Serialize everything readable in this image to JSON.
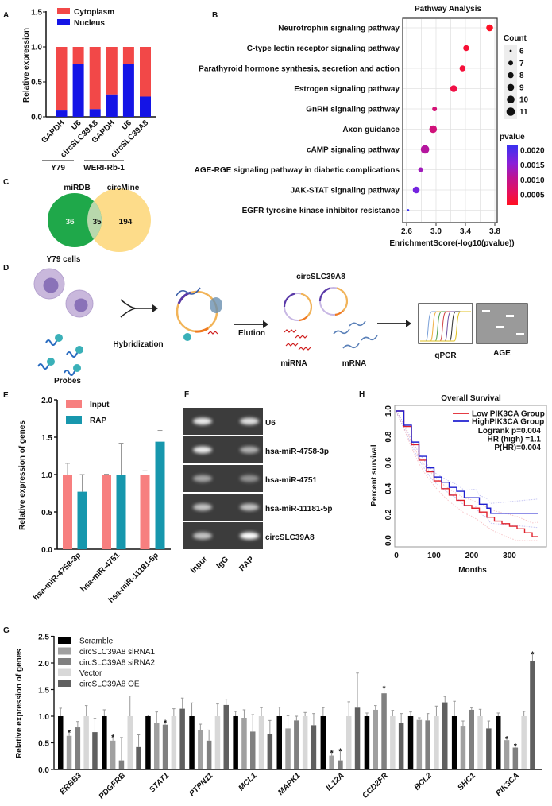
{
  "figure": {
    "panel_labels": [
      "A",
      "B",
      "C",
      "D",
      "E",
      "F",
      "G",
      "H"
    ]
  },
  "chart_data": [
    {
      "panel": "A",
      "type": "bar",
      "stacked": true,
      "categories": [
        "GAPDH",
        "U6",
        "circSLC39A8",
        "GAPDH",
        "U6",
        "circSLC39A8"
      ],
      "groups": [
        {
          "label": "Y79",
          "members": [
            0,
            1,
            2
          ]
        },
        {
          "label": "WERI-Rb-1",
          "members": [
            3,
            4,
            5
          ]
        }
      ],
      "series": [
        {
          "name": "Cytoplasm",
          "values": [
            0.91,
            0.24,
            0.89,
            0.68,
            0.24,
            0.71
          ],
          "color": "#f24848"
        },
        {
          "name": "Nucleus",
          "values": [
            0.09,
            0.76,
            0.11,
            0.32,
            0.76,
            0.29
          ],
          "color": "#1414e6"
        }
      ],
      "ylabel": "Relative expression",
      "ylim": [
        0,
        1.5
      ],
      "yticks": [
        "0.0",
        "0.5",
        "1.0",
        "1.5"
      ],
      "legend": "top"
    },
    {
      "panel": "B",
      "type": "scatter",
      "title": "Pathway Analysis",
      "xlabel": "EnrichmentScore(-log10(pvalue))",
      "xlim": [
        2.57,
        3.82
      ],
      "xticks": [
        "2.6",
        "3.0",
        "3.4",
        "3.8"
      ],
      "grid": true,
      "points": [
        {
          "pathway": "Neurotrophin signaling pathway",
          "score": 3.73,
          "count": 9,
          "pvalue": 0.00019
        },
        {
          "pathway": "C-type lectin receptor signaling pathway",
          "score": 3.41,
          "count": 8,
          "pvalue": 0.00039
        },
        {
          "pathway": "Parathyroid hormone synthesis, secretion and action",
          "score": 3.36,
          "count": 8,
          "pvalue": 0.00044
        },
        {
          "pathway": "Estrogen signaling pathway",
          "score": 3.24,
          "count": 9,
          "pvalue": 0.00058
        },
        {
          "pathway": "GnRH signaling pathway",
          "score": 2.98,
          "count": 7,
          "pvalue": 0.00105
        },
        {
          "pathway": "Axon guidance",
          "score": 2.96,
          "count": 10,
          "pvalue": 0.0011
        },
        {
          "pathway": "cAMP signaling pathway",
          "score": 2.85,
          "count": 11,
          "pvalue": 0.0014
        },
        {
          "pathway": "AGE-RGE signaling pathway in diabetic complications",
          "score": 2.79,
          "count": 7,
          "pvalue": 0.0016
        },
        {
          "pathway": "JAK-STAT signaling pathway",
          "score": 2.73,
          "count": 9,
          "pvalue": 0.0019
        },
        {
          "pathway": "EGFR tyrosine kinase inhibitor resistance",
          "score": 2.62,
          "count": 6,
          "pvalue": 0.0024
        }
      ],
      "size_legend": {
        "title": "Count",
        "values": [
          "6",
          "7",
          "8",
          "9",
          "10",
          "11"
        ]
      },
      "color_legend": {
        "title": "pvalue",
        "ticks": [
          "0.0020",
          "0.0015",
          "0.0010",
          "0.0005"
        ],
        "low_color": "#ff1020",
        "high_color": "#3a30f0"
      }
    },
    {
      "panel": "C",
      "type": "venn",
      "sets": [
        {
          "name": "miRDB",
          "color": "#1fa84a"
        },
        {
          "name": "circMine",
          "color": "#fddc8a"
        }
      ],
      "regions": {
        "miRDB_only": "36",
        "both": "35",
        "circMine_only": "194"
      },
      "overlap_color": "#b8d8ac"
    },
    {
      "panel": "E",
      "type": "bar",
      "categories": [
        "hsa-miR-4758-3p",
        "hsa-miR-4751",
        "hsa-miR-11181-5p"
      ],
      "series": [
        {
          "name": "Input",
          "values": [
            1.0,
            1.0,
            1.0
          ],
          "errors": [
            0.15,
            0.005,
            0.05
          ],
          "color": "#f77f7f"
        },
        {
          "name": "RAP",
          "values": [
            0.77,
            1.0,
            1.44
          ],
          "errors": [
            0.23,
            0.42,
            0.15
          ],
          "color": "#1797ad"
        }
      ],
      "ylabel": "Relative expression of  genes",
      "ylim": [
        0,
        2
      ],
      "yticks": [
        "0.0",
        "0.5",
        "1.0",
        "1.5",
        "2.0"
      ],
      "legend": "top-left"
    },
    {
      "panel": "H",
      "type": "line",
      "title": "Overall Survival",
      "xlabel": "Months",
      "ylabel": "Percent survival",
      "xlim": [
        0,
        380
      ],
      "ylim": [
        0,
        1
      ],
      "xticks": [
        "0",
        "100",
        "200",
        "300"
      ],
      "yticks": [
        "0.0",
        "0.2",
        "0.4",
        "0.6",
        "0.8",
        "1.0"
      ],
      "series": [
        {
          "name": "Low PIK3CA Group",
          "color": "#e0202a",
          "x": [
            0,
            20,
            40,
            60,
            80,
            100,
            120,
            140,
            160,
            180,
            200,
            220,
            240,
            260,
            280,
            300,
            320,
            340,
            360,
            375
          ],
          "y": [
            1.0,
            0.88,
            0.74,
            0.62,
            0.53,
            0.46,
            0.4,
            0.35,
            0.31,
            0.27,
            0.25,
            0.22,
            0.18,
            0.15,
            0.13,
            0.11,
            0.09,
            0.06,
            0.03,
            0.03
          ]
        },
        {
          "name": "HighPIK3CA Group",
          "color": "#2020d0",
          "x": [
            0,
            20,
            40,
            60,
            80,
            100,
            120,
            140,
            160,
            180,
            210,
            220,
            240,
            250,
            375
          ],
          "y": [
            1.0,
            0.89,
            0.76,
            0.65,
            0.56,
            0.49,
            0.45,
            0.41,
            0.38,
            0.33,
            0.33,
            0.28,
            0.25,
            0.21,
            0.21
          ]
        }
      ],
      "annotations": [
        "Logrank p=0.004",
        "HR  (high)  =1.1",
        "P(HR)=0.004"
      ],
      "legend": "top-right"
    },
    {
      "panel": "G",
      "type": "bar",
      "categories": [
        "ERBB3",
        "PDGFRB",
        "STAT1",
        "PTPN11",
        "MCL1",
        "MAPK1",
        "IL12A",
        "CCD2FR",
        "BCL2",
        "SHC1",
        "PIK3CA"
      ],
      "series": [
        {
          "name": "Scramble",
          "color": "#000000",
          "values": [
            1,
            1,
            1,
            1,
            1,
            1,
            1,
            1,
            1,
            1,
            1
          ],
          "errors": [
            0.15,
            0.12,
            0.02,
            0.25,
            0.09,
            0.17,
            0.16,
            0.06,
            0.08,
            0.28,
            0.06
          ],
          "significant": [
            false,
            false,
            false,
            false,
            false,
            false,
            false,
            false,
            false,
            false,
            false
          ]
        },
        {
          "name": "circSLC39A8 siRNA1",
          "color": "#a0a0a0",
          "values": [
            0.63,
            0.54,
            0.88,
            0.74,
            0.97,
            0.77,
            0.26,
            1.12,
            0.93,
            0.82,
            0.55
          ],
          "errors": [
            0.07,
            0.07,
            0.2,
            0.11,
            0.15,
            0.24,
            0.06,
            0.08,
            0.04,
            0.09,
            0.03
          ],
          "significant": [
            true,
            true,
            false,
            false,
            false,
            false,
            true,
            false,
            false,
            false,
            true
          ]
        },
        {
          "name": "circSLC39A8 siRNA2",
          "color": "#808080",
          "values": [
            0.79,
            0.17,
            0.84,
            0.54,
            0.71,
            0.92,
            0.17,
            1.43,
            0.92,
            1.12,
            0.41
          ],
          "errors": [
            0.11,
            0.43,
            0.05,
            0.2,
            0.32,
            0.08,
            0.18,
            0.1,
            0.13,
            0.04,
            0.04
          ],
          "significant": [
            false,
            false,
            true,
            false,
            false,
            false,
            true,
            true,
            false,
            false,
            true
          ]
        },
        {
          "name": "Vector",
          "color": "#d8d8d8",
          "values": [
            1,
            1,
            1,
            1,
            1,
            1,
            1,
            1,
            1,
            1,
            1
          ],
          "errors": [
            0.2,
            0.38,
            0.14,
            0.23,
            0.16,
            0.07,
            0.27,
            0.11,
            0.19,
            0.13,
            0.09
          ],
          "significant": [
            false,
            false,
            false,
            false,
            false,
            false,
            false,
            false,
            false,
            false,
            false
          ]
        },
        {
          "name": "circSLC39A8 OE",
          "color": "#606060",
          "values": [
            0.7,
            0.42,
            1.14,
            1.21,
            0.66,
            0.83,
            1.16,
            0.88,
            1.26,
            0.77,
            2.04
          ],
          "errors": [
            0.26,
            0.23,
            0.2,
            0.11,
            0.26,
            0.22,
            0.65,
            0.17,
            0.11,
            0.14,
            0.13
          ],
          "significant": [
            false,
            false,
            false,
            false,
            false,
            false,
            false,
            false,
            false,
            false,
            true
          ]
        }
      ],
      "significance_marker": "*",
      "ylabel": "Relative expression of genes",
      "ylim": [
        0,
        2.5
      ],
      "yticks": [
        "0.0",
        "0.5",
        "1.0",
        "1.5",
        "2.0",
        "2.5"
      ],
      "legend": "top-left"
    }
  ],
  "diagram_d": {
    "cells": "Y79 cells",
    "probes": "Probes",
    "hybridization": "Hybridization",
    "elution": "Elution",
    "circ": "circSLC39A8",
    "mirna": "miRNA",
    "mrna": "mRNA",
    "qpcr": "qPCR",
    "age": "AGE"
  },
  "gel_f": {
    "lanes": [
      "Input",
      "IgG",
      "RAP"
    ],
    "rows": [
      {
        "label": "U6",
        "intensity": [
          0.9,
          0,
          0.85
        ]
      },
      {
        "label": "hsa-miR-4758-3p",
        "intensity": [
          0.9,
          0,
          0.6
        ]
      },
      {
        "label": "hsa-miR-4751",
        "intensity": [
          0.55,
          0,
          0.45
        ]
      },
      {
        "label": "hsa-miR-11181-5p",
        "intensity": [
          0.7,
          0,
          0.7
        ]
      },
      {
        "label": "circSLC39A8",
        "intensity": [
          0.7,
          0,
          1.0
        ]
      }
    ]
  }
}
